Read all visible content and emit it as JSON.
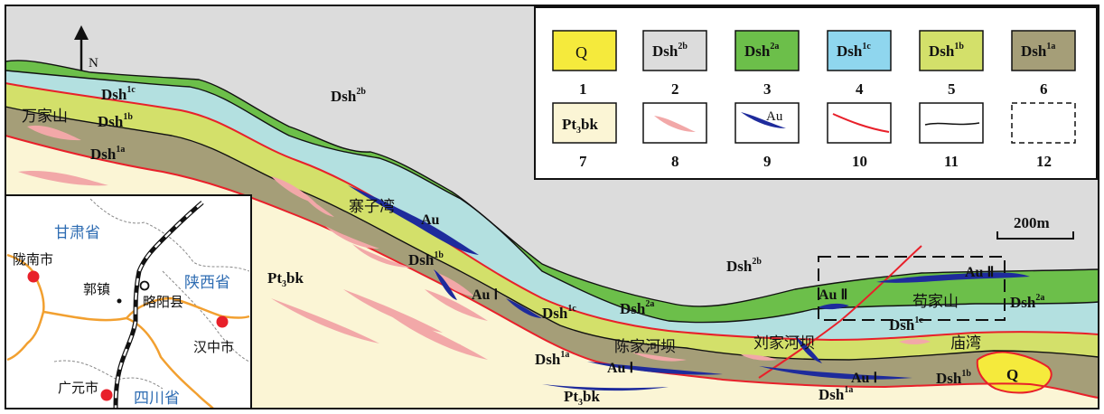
{
  "map": {
    "north_label": "N",
    "scale_label": "200m",
    "units": {
      "dsh2b": {
        "base": "Dsh",
        "sup": "2b"
      },
      "dsh2a": {
        "base": "Dsh",
        "sup": "2a"
      },
      "dsh1c": {
        "base": "Dsh",
        "sup": "1c"
      },
      "dsh1b": {
        "base": "Dsh",
        "sup": "1b"
      },
      "dsh1a": {
        "base": "Dsh",
        "sup": "1a"
      },
      "pt3bk": {
        "a": "Pt",
        "sub": "3",
        "b": "bk"
      },
      "q": "Q"
    },
    "places": {
      "wanjiashan": "万家山",
      "zhaiziwan": "寨子湾",
      "chenjiaheba": "陈家河坝",
      "liujiaheba": "刘家河坝",
      "gou_jiashan": "苟家山",
      "miaowan": "庙湾"
    },
    "ore": {
      "au": "Au",
      "au1": "Au Ⅰ",
      "au2": "Au Ⅱ"
    },
    "colors": {
      "q": "#f5ea3c",
      "dsh2b": "#dcdcdc",
      "dsh2a": "#6cbf4a",
      "dsh1c": "#b3e0e0",
      "dsh1b": "#d3e06a",
      "dsh1a": "#a59e78",
      "pt3bk": "#fbf5d5",
      "lens": "#f2a8a8",
      "orebody": "#1e2b9c",
      "fault": "#e8202a"
    }
  },
  "legend": {
    "items": [
      {
        "num": "1",
        "label": {
          "base": "Q",
          "sup": ""
        }
      },
      {
        "num": "2",
        "label": {
          "base": "Dsh",
          "sup": "2b"
        }
      },
      {
        "num": "3",
        "label": {
          "base": "Dsh",
          "sup": "2a"
        }
      },
      {
        "num": "4",
        "label": {
          "base": "Dsh",
          "sup": "1c"
        }
      },
      {
        "num": "5",
        "label": {
          "base": "Dsh",
          "sup": "1b"
        }
      },
      {
        "num": "6",
        "label": {
          "base": "Dsh",
          "sup": "1a"
        }
      },
      {
        "num": "7",
        "label": {
          "a": "Pt",
          "sub": "3",
          "b": "bk"
        }
      },
      {
        "num": "8"
      },
      {
        "num": "9",
        "label": "Au"
      },
      {
        "num": "10"
      },
      {
        "num": "11"
      },
      {
        "num": "12"
      }
    ]
  },
  "inset": {
    "provinces": {
      "gansu": "甘肃省",
      "shaanxi": "陕西省",
      "sichuan": "四川省"
    },
    "cities": {
      "longnan": "陇南市",
      "guozhen": "郭镇",
      "lueyang": "略阳县",
      "hanzhong": "汉中市",
      "guangyuan": "广元市"
    }
  }
}
